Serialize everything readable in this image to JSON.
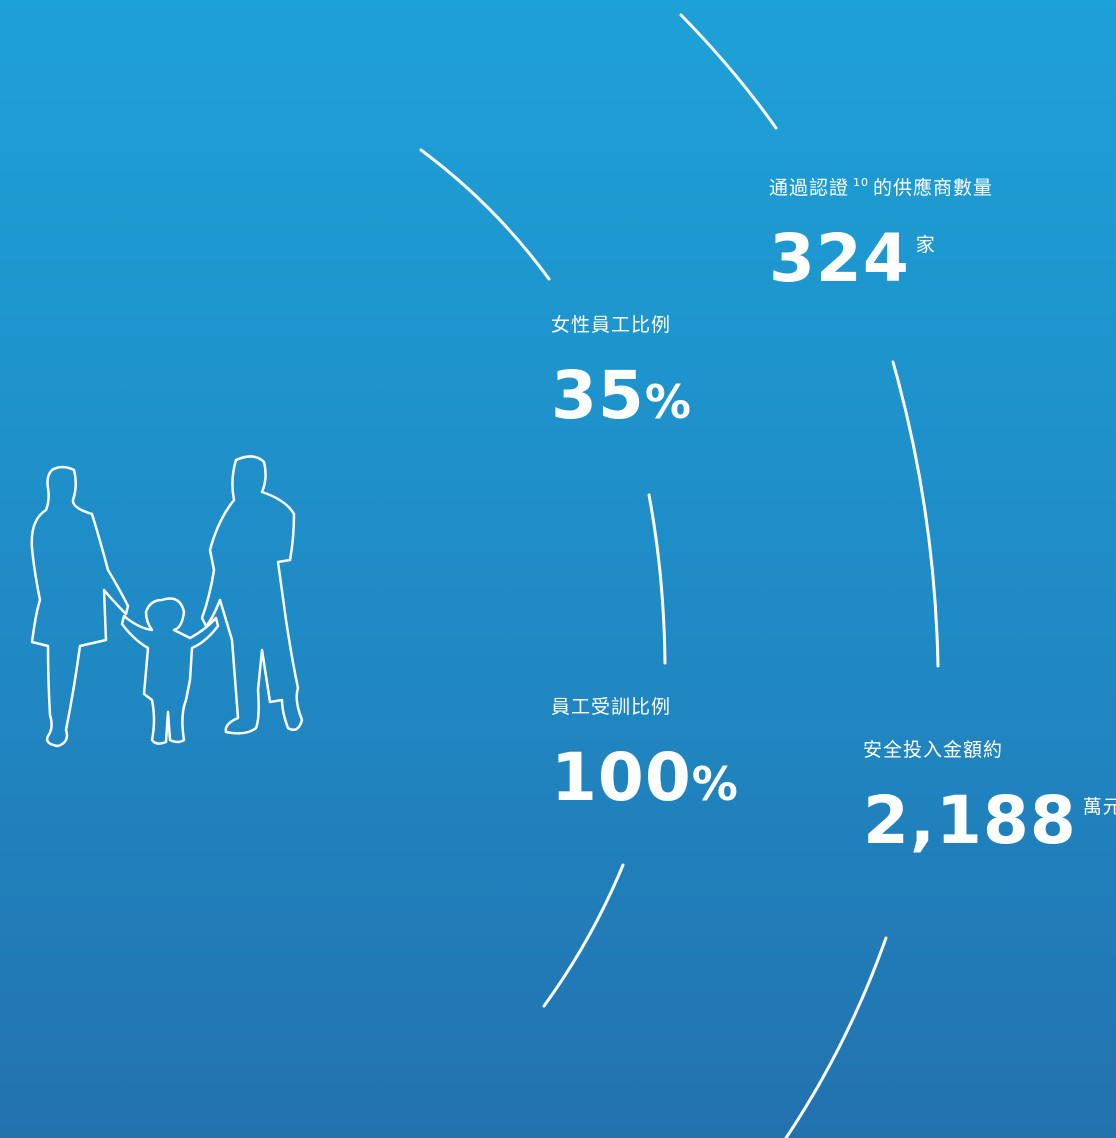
{
  "stats": [
    {
      "label": "女性員工比例",
      "value": "35",
      "unit": "%"
    },
    {
      "label": "員工受訓比例",
      "value": "100",
      "unit": "%"
    },
    {
      "label_before": "通過認證",
      "footnote": "10",
      "label_after": "的供應商數量",
      "value": "324",
      "unit": "家"
    },
    {
      "label": "安全投入金額約",
      "value": "2,188",
      "unit": "萬元"
    }
  ]
}
